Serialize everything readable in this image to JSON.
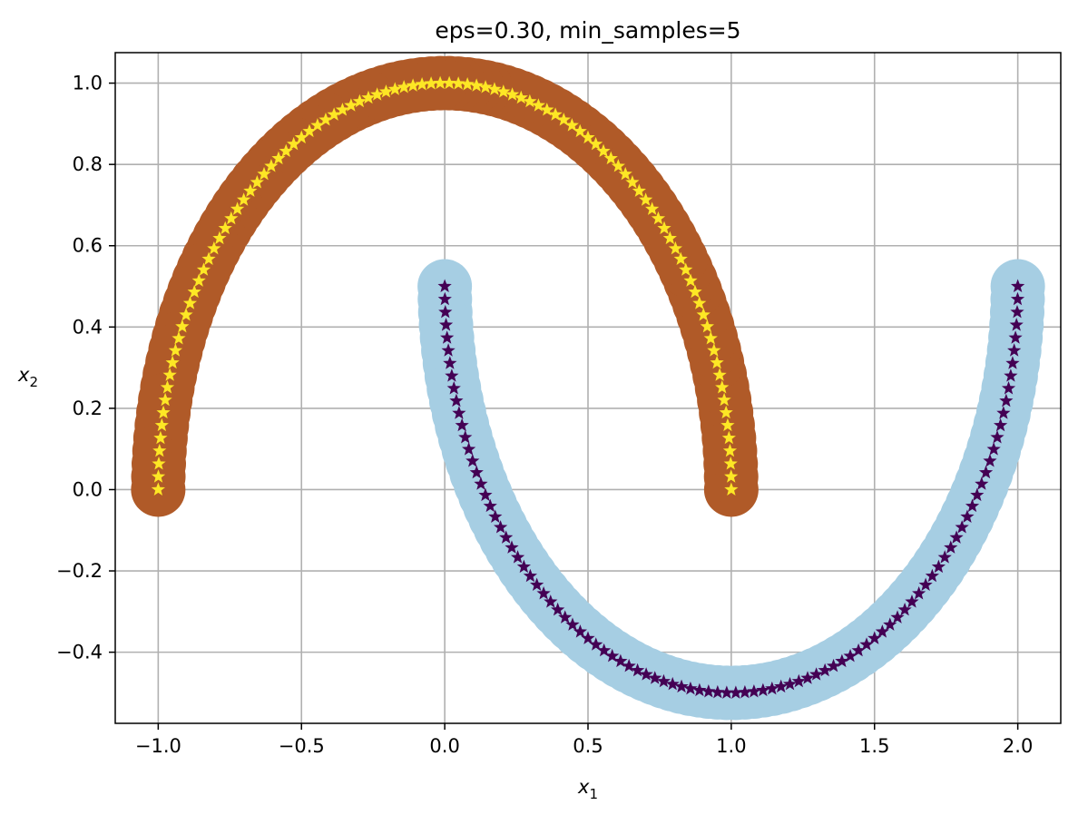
{
  "chart_data": {
    "type": "scatter",
    "title": "eps=0.30, min_samples=5",
    "xlabel": "x",
    "xlabel_sub": "1",
    "ylabel": "x",
    "ylabel_sub": "2",
    "xlim": [
      -1.15,
      2.15
    ],
    "ylim": [
      -0.575,
      1.075
    ],
    "xticks": [
      -1.0,
      -0.5,
      0.0,
      0.5,
      1.0,
      1.5,
      2.0
    ],
    "xtick_labels": [
      "−1.0",
      "−0.5",
      "0.0",
      "0.5",
      "1.0",
      "1.5",
      "2.0"
    ],
    "yticks": [
      -0.4,
      -0.2,
      0.0,
      0.2,
      0.4,
      0.6,
      0.8,
      1.0
    ],
    "ytick_labels": [
      "−0.4",
      "−0.2",
      "0.0",
      "0.2",
      "0.4",
      "0.6",
      "0.8",
      "1.0"
    ],
    "grid": true,
    "series": [
      {
        "cluster": 0,
        "shape": "upper-moon",
        "t_range": [
          0,
          3.14159
        ],
        "x_formula": "cos(t)",
        "y_formula": "sin(t)",
        "halo_color": "#b05a28",
        "marker_color": "#fde725",
        "marker": "star",
        "points": 100
      },
      {
        "cluster": 1,
        "shape": "lower-moon",
        "t_range": [
          0,
          3.14159
        ],
        "x_formula": "1 - cos(t)",
        "y_formula": "0.5 - sin(t)",
        "halo_color": "#a6cee3",
        "marker_color": "#440154",
        "marker": "star",
        "points": 100
      }
    ]
  }
}
